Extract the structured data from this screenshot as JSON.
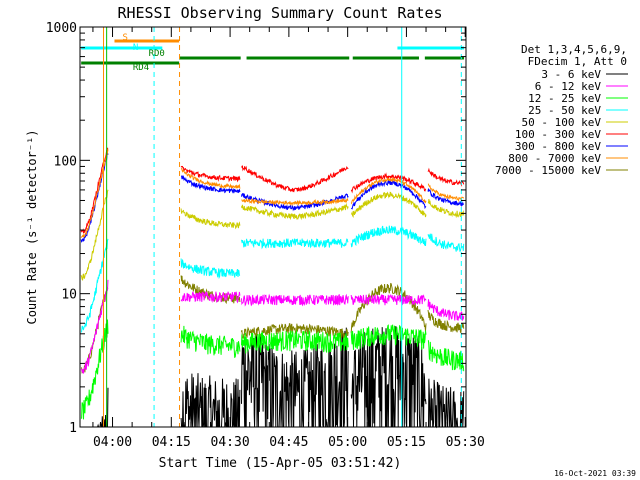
{
  "chart_data": {
    "type": "line",
    "title": "RHESSI Observing Summary Count Rates",
    "xlabel": "Start Time (15-Apr-05 03:51:42)",
    "ylabel": "Count Rate (s⁻¹ detector⁻¹)",
    "yscale": "log",
    "ylim": [
      1,
      1000
    ],
    "xlim_minutes": [
      0,
      98.5
    ],
    "x_ticks": [
      {
        "label": "04:00",
        "minute": 8.3
      },
      {
        "label": "04:15",
        "minute": 23.3
      },
      {
        "label": "04:30",
        "minute": 38.3
      },
      {
        "label": "04:45",
        "minute": 53.3
      },
      {
        "label": "05:00",
        "minute": 68.3
      },
      {
        "label": "05:15",
        "minute": 83.3
      },
      {
        "label": "05:30",
        "minute": 98.3
      }
    ],
    "y_ticks": [
      {
        "label": "1",
        "value": 1
      },
      {
        "label": "10",
        "value": 10
      },
      {
        "label": "100",
        "value": 100
      },
      {
        "label": "1000",
        "value": 1000
      }
    ],
    "legend": {
      "placement": "right",
      "header": [
        "Det 1,3,4,5,6,9,",
        "FDecim 1, Att 0"
      ]
    },
    "series": [
      {
        "name": "3 - 6 keV",
        "color": "#000000",
        "base": [
          1.1,
          1.5,
          1.2,
          2.0,
          3.0,
          2.0,
          1.3
        ],
        "noise": 0.55
      },
      {
        "name": "6 - 12 keV",
        "color": "#ff00ff",
        "base": [
          12,
          9.5,
          9.5,
          9.0,
          9.0,
          9.0,
          8.5
        ],
        "noise": 0.09
      },
      {
        "name": "12 - 25 keV",
        "color": "#00ff00",
        "base": [
          6,
          5.0,
          4.0,
          4.3,
          4.5,
          5.0,
          4.0
        ],
        "noise": 0.18
      },
      {
        "name": "25 - 50 keV",
        "color": "#00ffff",
        "base": [
          25,
          17,
          14,
          24,
          24,
          30,
          28
        ],
        "noise": 0.08
      },
      {
        "name": "50 - 100 keV",
        "color": "#cccc00",
        "base": [
          60,
          42,
          32,
          45,
          38,
          55,
          50
        ],
        "noise": 0.05
      },
      {
        "name": "100 - 300 keV",
        "color": "#ff0000",
        "base": [
          130,
          88,
          72,
          90,
          60,
          76,
          85
        ],
        "noise": 0.04
      },
      {
        "name": "300 - 800 keV",
        "color": "#0000ff",
        "base": [
          115,
          75,
          58,
          55,
          44,
          68,
          60
        ],
        "noise": 0.04
      },
      {
        "name": "800 - 7000 keV",
        "color": "#ff8c00",
        "base": [
          120,
          85,
          62,
          50,
          48,
          72,
          65
        ],
        "noise": 0.03
      },
      {
        "name": "7000 - 15000 keV",
        "color": "#808000",
        "base": [
          12,
          13,
          9.0,
          5.0,
          5.5,
          11,
          7.0
        ],
        "noise": 0.09
      }
    ],
    "flags": [
      {
        "label": "S",
        "color": "#ff8c00",
        "segments": [
          [
            8.8,
            25.3
          ]
        ]
      },
      {
        "label": "N",
        "color": "#00ffff",
        "segments": [
          [
            0.3,
            21.0
          ],
          [
            81.0,
            98.0
          ]
        ]
      },
      {
        "label": "RD0",
        "color": "#008000",
        "segments": [
          [
            25.3,
            41.0
          ],
          [
            42.5,
            68.7
          ],
          [
            69.6,
            86.5
          ],
          [
            88.0,
            98.0
          ]
        ]
      },
      {
        "label": "RD4",
        "color": "#008000",
        "segments": [
          [
            0.3,
            25.3
          ]
        ]
      }
    ],
    "vlines": [
      {
        "minute": 6.0,
        "color": "#ff8c00",
        "style": "solid"
      },
      {
        "minute": 6.8,
        "color": "#00c000",
        "style": "solid"
      },
      {
        "minute": 18.9,
        "color": "#00ffff",
        "style": "dashed"
      },
      {
        "minute": 25.4,
        "color": "#ff8c00",
        "style": "dashed"
      },
      {
        "minute": 82.1,
        "color": "#00ffff",
        "style": "solid"
      },
      {
        "minute": 97.3,
        "color": "#00ffff",
        "style": "dashed"
      }
    ],
    "footer": "16-Oct-2021 03:39"
  }
}
